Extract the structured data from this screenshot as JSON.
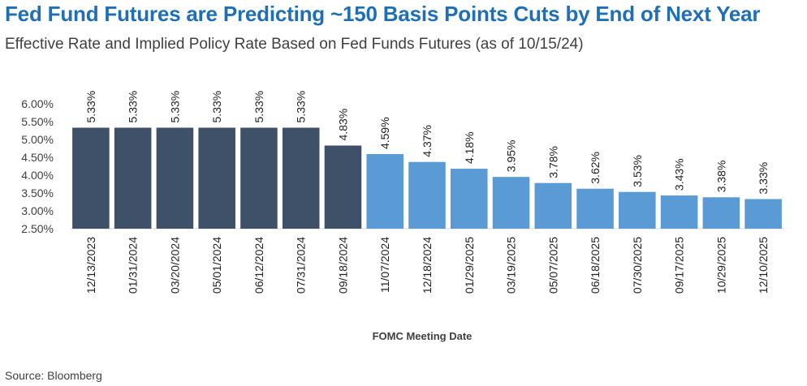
{
  "header": {
    "title": "Fed Fund Futures are Predicting ~150 Basis Points Cuts by End of Next Year",
    "subtitle": "Effective Rate and Implied Policy Rate Based on Fed Funds Futures (as of 10/15/24)"
  },
  "footer": {
    "source": "Source: Bloomberg"
  },
  "colors": {
    "dark_bar": "#3f5169",
    "light_bar": "#5b9bd5"
  },
  "chart_data": {
    "type": "bar",
    "title": "Fed Fund Futures are Predicting ~150 Basis Points Cuts by End of Next Year",
    "subtitle": "Effective Rate and Implied Policy Rate Based on Fed Funds Futures (as of 10/15/24)",
    "xlabel": "FOMC Meeting Date",
    "ylabel": "",
    "ylim": [
      2.5,
      6.0
    ],
    "yticks": [
      "2.50%",
      "3.00%",
      "3.50%",
      "4.00%",
      "4.50%",
      "5.00%",
      "5.50%",
      "6.00%"
    ],
    "categories": [
      "12/13/2023",
      "01/31/2024",
      "03/20/2024",
      "05/01/2024",
      "06/12/2024",
      "07/31/2024",
      "09/18/2024",
      "11/07/2024",
      "12/18/2024",
      "01/29/2025",
      "03/19/2025",
      "05/07/2025",
      "06/18/2025",
      "07/30/2025",
      "09/17/2025",
      "10/29/2025",
      "12/10/2025"
    ],
    "values": [
      5.33,
      5.33,
      5.33,
      5.33,
      5.33,
      5.33,
      4.83,
      4.59,
      4.37,
      4.18,
      3.95,
      3.78,
      3.62,
      3.53,
      3.43,
      3.38,
      3.33
    ],
    "labels": [
      "5.33%",
      "5.33%",
      "5.33%",
      "5.33%",
      "5.33%",
      "5.33%",
      "4.83%",
      "4.59%",
      "4.37%",
      "4.18%",
      "3.95%",
      "3.78%",
      "3.62%",
      "3.53%",
      "3.43%",
      "3.38%",
      "3.33%"
    ],
    "bar_colors": [
      "#3f5169",
      "#3f5169",
      "#3f5169",
      "#3f5169",
      "#3f5169",
      "#3f5169",
      "#3f5169",
      "#5b9bd5",
      "#5b9bd5",
      "#5b9bd5",
      "#5b9bd5",
      "#5b9bd5",
      "#5b9bd5",
      "#5b9bd5",
      "#5b9bd5",
      "#5b9bd5",
      "#5b9bd5"
    ],
    "grid": false,
    "legend": "none"
  }
}
